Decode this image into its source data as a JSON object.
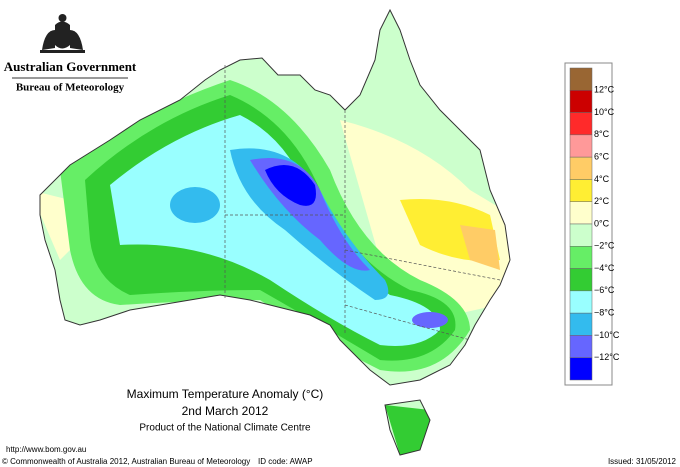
{
  "header": {
    "government": "Australian Government",
    "agency": "Bureau of Meteorology"
  },
  "map": {
    "title": "Maximum Temperature Anomaly (°C)",
    "date": "2nd March 2012",
    "product": "Product of the National Climate Centre"
  },
  "legend": {
    "colors": [
      "#996633",
      "#cc0000",
      "#ff2a2a",
      "#ff9999",
      "#ffcc66",
      "#ffee33",
      "#ffffcc",
      "#ccffcc",
      "#66ee66",
      "#33cc33",
      "#99ffff",
      "#33bbee",
      "#6666ff",
      "#0000ff"
    ],
    "labels": [
      "12°C",
      "10°C",
      "8°C",
      "6°C",
      "4°C",
      "2°C",
      "0°C",
      "−2°C",
      "−4°C",
      "−6°C",
      "−8°C",
      "−10°C",
      "−12°C"
    ]
  },
  "footer": {
    "url": "http://www.bom.gov.au",
    "copyright": "© Commonwealth of Australia 2012, Australian Bureau of Meteorology",
    "id_code": "ID code: AWAP",
    "issued": "Issued: 31/05/2012"
  }
}
